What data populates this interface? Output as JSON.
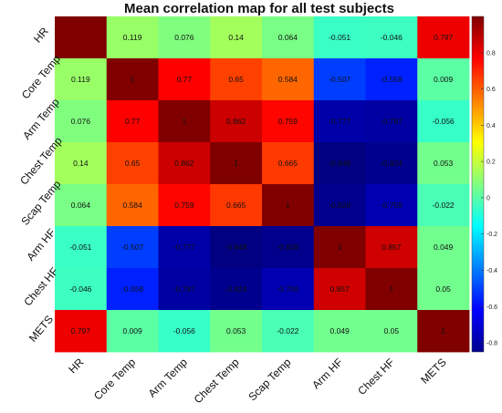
{
  "chart_data": {
    "type": "heatmap",
    "title": "Mean correlation map for all test subjects",
    "variables": [
      "HR",
      "Core Temp",
      "Arm Temp",
      "Chest Temp",
      "Scap Temp",
      "Arm HF",
      "Chest HF",
      "METS"
    ],
    "matrix": [
      [
        1,
        0.119,
        0.076,
        0.14,
        0.064,
        -0.051,
        -0.046,
        0.797
      ],
      [
        0.119,
        1,
        0.77,
        0.65,
        0.584,
        -0.507,
        -0.558,
        0.009
      ],
      [
        0.076,
        0.77,
        1,
        0.862,
        0.759,
        -0.777,
        -0.787,
        -0.056
      ],
      [
        0.14,
        0.65,
        0.862,
        1,
        0.665,
        -0.848,
        -0.824,
        0.053
      ],
      [
        0.064,
        0.584,
        0.759,
        0.665,
        1,
        -0.828,
        -0.759,
        -0.022
      ],
      [
        -0.051,
        -0.507,
        -0.777,
        -0.848,
        -0.828,
        1,
        0.857,
        0.049
      ],
      [
        -0.046,
        -0.558,
        -0.787,
        -0.824,
        -0.759,
        0.857,
        1,
        0.05
      ],
      [
        0.797,
        0.009,
        -0.056,
        0.053,
        -0.022,
        0.049,
        0.05,
        1
      ]
    ],
    "cell_labels": [
      [
        "",
        "0.119",
        "0.076",
        "0.14",
        "0.064",
        "-0.051",
        "-0.046",
        "0.797"
      ],
      [
        "0.119",
        "1",
        "0.77",
        "0.65",
        "0.584",
        "-0.507",
        "-0.558",
        "0.009"
      ],
      [
        "0.076",
        "0.77",
        "1",
        "0.862",
        "0.759",
        "-0.777",
        "-0.787",
        "-0.056"
      ],
      [
        "0.14",
        "0.65",
        "0.862",
        "1",
        "0.665",
        "-0.848",
        "-0.824",
        "0.053"
      ],
      [
        "0.064",
        "0.584",
        "0.759",
        "0.665",
        "1",
        "-0.828",
        "-0.759",
        "-0.022"
      ],
      [
        "-0.051",
        "-0.507",
        "-0.777",
        "-0.848",
        "-0.828",
        "1",
        "0.857",
        "0.049"
      ],
      [
        "-0.046",
        "-0.558",
        "-0.787",
        "-0.824",
        "-0.759",
        "0.857",
        "1",
        "0.05"
      ],
      [
        "0.797",
        "0.009",
        "-0.056",
        "0.053",
        "-0.022",
        "0.049",
        "0.05",
        "1"
      ]
    ],
    "colorbar": {
      "colormap": "jet",
      "range": [
        -0.85,
        1
      ],
      "ticks": [
        -0.8,
        -0.6,
        -0.4,
        -0.2,
        0,
        0.2,
        0.4,
        0.6,
        0.8
      ],
      "placement": "right"
    }
  }
}
